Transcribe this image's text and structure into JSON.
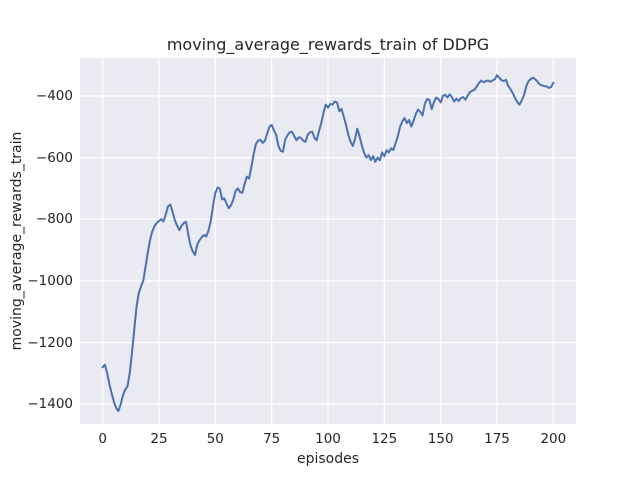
{
  "figure": {
    "title": "moving_average_rewards_train of DDPG",
    "x_axis_label": "episodes",
    "y_axis_label": "moving_average_rewards_train"
  },
  "colors": {
    "figure_bg": "#ffffff",
    "axes_bg": "#eaeaf2",
    "grid": "#ffffff",
    "line": "#4c72b0",
    "text": "#262626"
  },
  "chart_data": {
    "type": "line",
    "title": "moving_average_rewards_train of DDPG",
    "xlabel": "episodes",
    "ylabel": "moving_average_rewards_train",
    "xlim": [
      -10.05,
      210.05
    ],
    "ylim": [
      -1464,
      -277
    ],
    "xticks": [
      0,
      25,
      50,
      75,
      100,
      125,
      150,
      175,
      200
    ],
    "xtick_labels": [
      "0",
      "25",
      "50",
      "75",
      "100",
      "125",
      "150",
      "175",
      "200"
    ],
    "yticks": [
      -400,
      -600,
      -800,
      -1000,
      -1200,
      -1400
    ],
    "ytick_labels": [
      "−400",
      "−600",
      "−800",
      "−1000",
      "−1200",
      "−1400"
    ],
    "grid": true,
    "legend": null,
    "series": [
      {
        "name": "moving_average_rewards_train",
        "x": [
          0,
          1,
          2,
          3,
          4,
          5,
          6,
          7,
          8,
          9,
          10,
          11,
          12,
          13,
          14,
          15,
          16,
          17,
          18,
          19,
          20,
          21,
          22,
          23,
          24,
          25,
          26,
          27,
          28,
          29,
          30,
          31,
          32,
          33,
          34,
          35,
          36,
          37,
          38,
          39,
          40,
          41,
          42,
          43,
          44,
          45,
          46,
          47,
          48,
          49,
          50,
          51,
          52,
          53,
          54,
          55,
          56,
          57,
          58,
          59,
          60,
          61,
          62,
          63,
          64,
          65,
          66,
          67,
          68,
          69,
          70,
          71,
          72,
          73,
          74,
          75,
          76,
          77,
          78,
          79,
          80,
          81,
          82,
          83,
          84,
          85,
          86,
          87,
          88,
          89,
          90,
          91,
          92,
          93,
          94,
          95,
          96,
          97,
          98,
          99,
          100,
          101,
          102,
          103,
          104,
          105,
          106,
          107,
          108,
          109,
          110,
          111,
          112,
          113,
          114,
          115,
          116,
          117,
          118,
          119,
          120,
          121,
          122,
          123,
          124,
          125,
          126,
          127,
          128,
          129,
          130,
          131,
          132,
          133,
          134,
          135,
          136,
          137,
          138,
          139,
          140,
          141,
          142,
          143,
          144,
          145,
          146,
          147,
          148,
          149,
          150,
          151,
          152,
          153,
          154,
          155,
          156,
          157,
          158,
          159,
          160,
          161,
          162,
          163,
          164,
          165,
          166,
          167,
          168,
          169,
          170,
          171,
          172,
          173,
          174,
          175,
          176,
          177,
          178,
          179,
          180,
          181,
          182,
          183,
          184,
          185,
          186,
          187,
          188,
          189,
          190,
          191,
          192,
          193,
          194,
          195,
          196,
          197,
          198,
          199,
          200
        ],
        "y": [
          -1280,
          -1272,
          -1300,
          -1335,
          -1365,
          -1392,
          -1412,
          -1422,
          -1400,
          -1372,
          -1352,
          -1343,
          -1300,
          -1235,
          -1160,
          -1085,
          -1040,
          -1018,
          -1000,
          -955,
          -910,
          -868,
          -840,
          -822,
          -812,
          -806,
          -800,
          -807,
          -785,
          -758,
          -752,
          -775,
          -803,
          -820,
          -835,
          -822,
          -812,
          -808,
          -850,
          -885,
          -905,
          -916,
          -882,
          -868,
          -858,
          -851,
          -856,
          -835,
          -805,
          -755,
          -715,
          -697,
          -700,
          -736,
          -732,
          -750,
          -764,
          -754,
          -735,
          -708,
          -700,
          -712,
          -714,
          -685,
          -662,
          -668,
          -630,
          -590,
          -556,
          -545,
          -543,
          -552,
          -546,
          -522,
          -500,
          -494,
          -512,
          -526,
          -562,
          -578,
          -581,
          -542,
          -528,
          -518,
          -516,
          -530,
          -544,
          -534,
          -536,
          -545,
          -549,
          -526,
          -518,
          -516,
          -536,
          -544,
          -514,
          -489,
          -455,
          -428,
          -438,
          -426,
          -428,
          -418,
          -421,
          -450,
          -442,
          -468,
          -494,
          -525,
          -548,
          -562,
          -540,
          -506,
          -530,
          -560,
          -585,
          -600,
          -592,
          -608,
          -595,
          -614,
          -600,
          -609,
          -583,
          -596,
          -576,
          -583,
          -570,
          -575,
          -553,
          -530,
          -500,
          -482,
          -472,
          -488,
          -478,
          -499,
          -480,
          -458,
          -444,
          -452,
          -463,
          -425,
          -410,
          -413,
          -443,
          -420,
          -405,
          -410,
          -421,
          -400,
          -396,
          -405,
          -395,
          -403,
          -418,
          -409,
          -416,
          -407,
          -404,
          -412,
          -399,
          -388,
          -383,
          -380,
          -369,
          -358,
          -350,
          -356,
          -352,
          -350,
          -354,
          -350,
          -346,
          -333,
          -341,
          -349,
          -352,
          -348,
          -368,
          -378,
          -391,
          -406,
          -420,
          -428,
          -414,
          -397,
          -368,
          -352,
          -345,
          -341,
          -346,
          -354,
          -363,
          -366,
          -368,
          -369,
          -374,
          -371,
          -357
        ]
      }
    ]
  }
}
